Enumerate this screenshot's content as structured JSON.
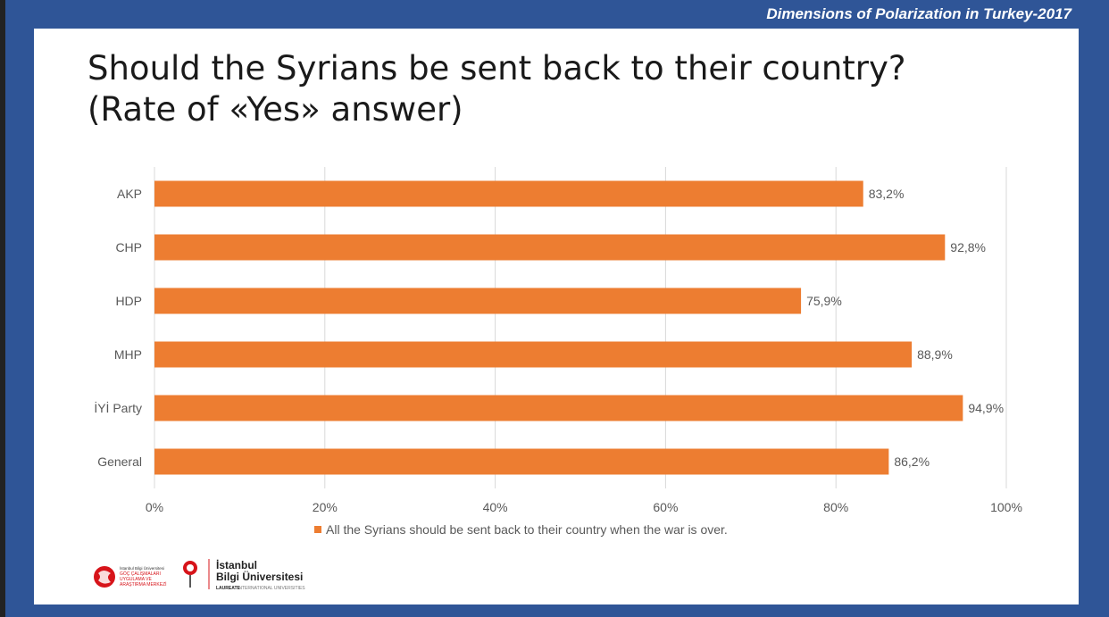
{
  "header": {
    "title": "Dimensions of Polarization in Turkey-2017"
  },
  "slide": {
    "title_line1": "Should the Syrians be sent back to their country?",
    "title_line2": "(Rate of «Yes» answer)"
  },
  "colors": {
    "bar": "#ed7d31",
    "frame": "#2f5597",
    "grid": "#d9d9d9"
  },
  "chart_data": {
    "type": "bar",
    "orientation": "horizontal",
    "categories": [
      "AKP",
      "CHP",
      "HDP",
      "MHP",
      "İYİ Party",
      "General"
    ],
    "series": [
      {
        "name": "All the Syrians should be sent back to their country when the war is over.",
        "values": [
          83.2,
          92.8,
          75.9,
          88.9,
          94.9,
          86.2
        ],
        "labels": [
          "83,2%",
          "92,8%",
          "75,9%",
          "88,9%",
          "94,9%",
          "86,2%"
        ]
      }
    ],
    "xlim": [
      0,
      100
    ],
    "xticks": [
      0,
      20,
      40,
      60,
      80,
      100
    ],
    "xtick_labels": [
      "0%",
      "20%",
      "40%",
      "60%",
      "80%",
      "100%"
    ],
    "grid": true,
    "legend": "bottom"
  },
  "footer": {
    "logo_left_lines": [
      "İstanbul Bilgi Üniversitesi",
      "GÖÇ ÇALIŞMALARI",
      "UYGULAMA VE",
      "ARAŞTIRMA MERKEZİ"
    ],
    "logo_right_line1": "İstanbul",
    "logo_right_line2": "Bilgi Üniversitesi",
    "logo_right_tag_bold": "LAUREATE",
    "logo_right_tag": "INTERNATIONAL UNIVERSITIES"
  }
}
